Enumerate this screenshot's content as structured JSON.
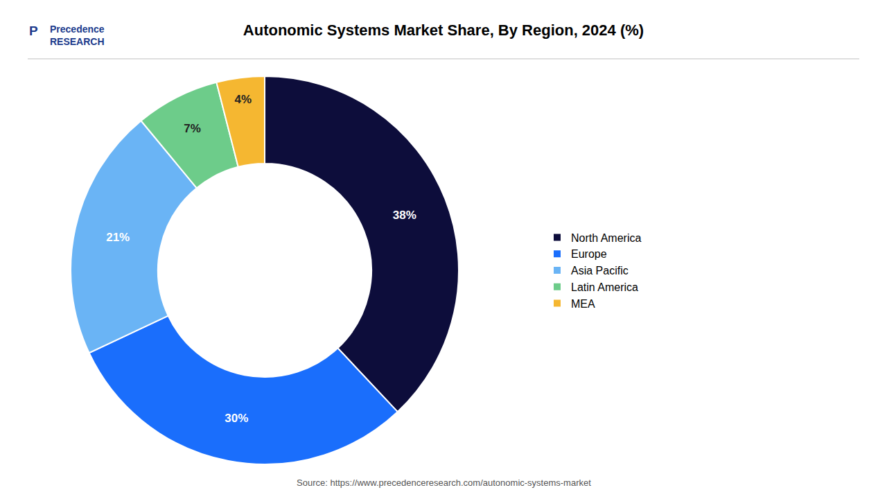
{
  "chart_data": {
    "type": "donut",
    "title": "Autonomic Systems Market Share, By Region, 2024 (%)",
    "categories": [
      "North America",
      "Europe",
      "Asia Pacific",
      "Latin America",
      "MEA"
    ],
    "values": [
      38,
      30,
      21,
      7,
      4
    ],
    "value_labels": [
      "38%",
      "30%",
      "21%",
      "7%",
      "4%"
    ],
    "colors": [
      "#0d0d3b",
      "#1a6efc",
      "#6ab4f5",
      "#6dcc8a",
      "#f5b731"
    ],
    "data_labels": true,
    "legend": "right",
    "annotations": [
      "Source: https://www.precedenceresearch.com/autonomic-systems-market",
      "P",
      "Precedence\nRESEARCH"
    ]
  }
}
